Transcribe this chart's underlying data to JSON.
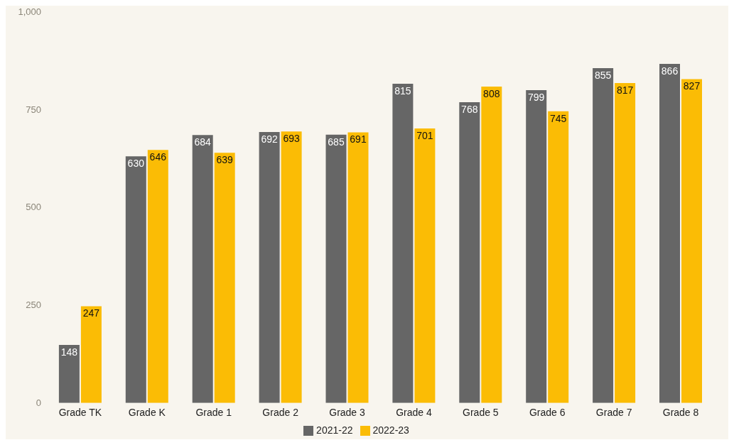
{
  "chart_data": {
    "type": "bar",
    "categories": [
      "Grade TK",
      "Grade K",
      "Grade 1",
      "Grade 2",
      "Grade 3",
      "Grade 4",
      "Grade 5",
      "Grade 6",
      "Grade 7",
      "Grade 8"
    ],
    "series": [
      {
        "name": "2021-22",
        "color": "#666666",
        "values": [
          148,
          630,
          684,
          692,
          685,
          815,
          768,
          799,
          855,
          866
        ]
      },
      {
        "name": "2022-23",
        "color": "#fbbc05",
        "values": [
          247,
          646,
          639,
          693,
          691,
          701,
          808,
          745,
          817,
          827
        ]
      }
    ],
    "ylim": [
      0,
      1000
    ],
    "yticks": [
      0,
      250,
      500,
      750,
      {
        "value": 1000,
        "label": "1,000"
      }
    ],
    "legend": "bottom",
    "data_labels": true
  }
}
